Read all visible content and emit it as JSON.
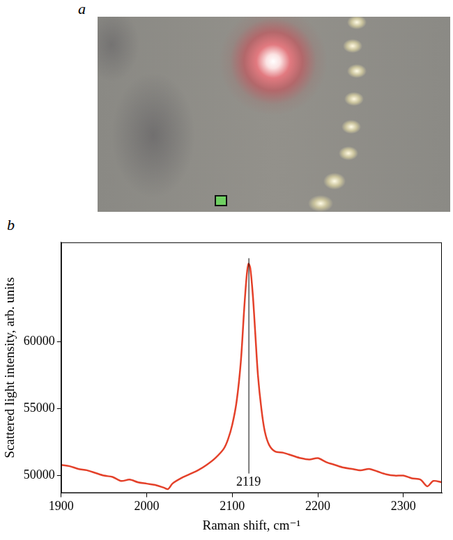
{
  "image_panel": {
    "panel_label": "a"
  },
  "chart_data": {
    "type": "line",
    "panel_label": "b",
    "xlabel": "Raman shift, cm⁻¹",
    "ylabel": "Scattered light intensity, arb. units",
    "x": [
      1900,
      1910,
      1920,
      1930,
      1940,
      1950,
      1960,
      1970,
      1980,
      1990,
      2000,
      2010,
      2020,
      2025,
      2030,
      2040,
      2050,
      2060,
      2070,
      2080,
      2090,
      2095,
      2100,
      2105,
      2110,
      2114,
      2117,
      2119,
      2121,
      2124,
      2127,
      2130,
      2134,
      2138,
      2143,
      2150,
      2160,
      2170,
      2180,
      2190,
      2200,
      2210,
      2220,
      2230,
      2240,
      2250,
      2260,
      2270,
      2280,
      2290,
      2300,
      2310,
      2320,
      2328,
      2335,
      2345
    ],
    "values": [
      50800,
      50700,
      50500,
      50400,
      50200,
      50000,
      49900,
      49600,
      49700,
      49500,
      49400,
      49300,
      49100,
      49000,
      49400,
      49800,
      50100,
      50400,
      50800,
      51300,
      52000,
      52700,
      53800,
      55500,
      58500,
      62500,
      65000,
      65800,
      65500,
      63500,
      60500,
      57500,
      55000,
      53300,
      52300,
      51800,
      51700,
      51500,
      51300,
      51200,
      51300,
      51000,
      50800,
      50600,
      50500,
      50400,
      50500,
      50300,
      50100,
      50000,
      50000,
      49800,
      49700,
      49200,
      49600,
      49500
    ],
    "color": "#e4412a",
    "xlim": [
      1900,
      2345
    ],
    "xticks": [
      1900,
      2000,
      2100,
      2200,
      2300
    ],
    "ylim": [
      48700,
      67400
    ],
    "yticks": [
      50000,
      55000,
      60000
    ],
    "grid": false,
    "annotations": [
      {
        "label": "2119",
        "x": 2119
      }
    ]
  }
}
